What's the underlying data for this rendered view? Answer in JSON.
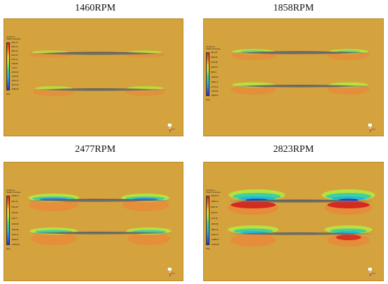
{
  "figure": {
    "panels": [
      {
        "title": "1460RPM",
        "legend_title": "contour-1\nStatic Pressure",
        "legend_ticks": [
          "4643.47",
          "3804.75",
          "3896.19",
          "2827.62",
          "1924.42",
          "1035.89",
          "-102.47",
          "-4000.29",
          "-3106.92",
          "-3879.74",
          "-5672.93",
          "-6586.86"
        ],
        "unit": "[Pa]"
      },
      {
        "title": "1858RPM",
        "legend_title": "contour-1\nStatic Pressure",
        "legend_ticks": [
          "8414.87",
          "6829.86",
          "4523.88",
          "2833.00",
          "898.01",
          "-1083.35",
          "-2890.17",
          "-4775.14",
          "-7009.54",
          "-9058.94"
        ],
        "unit": "[Pa]"
      },
      {
        "title": "2477RPM",
        "legend_title": "contour-1\nStatic Pressure",
        "legend_ticks": [
          "12839.47",
          "9267.16",
          "7094.48",
          "3702.08",
          "1293.77",
          "-1050.38",
          "-3363.59",
          "-6180.73",
          "-8498.07",
          "-12096.40"
        ],
        "unit": "[Pa]"
      },
      {
        "title": "2823RPM",
        "legend_title": "contour-1\nStatic Pressure",
        "legend_ticks": [
          "16564.81",
          "12867.41",
          "8936.13",
          "5118.12",
          "1453.35",
          "-1864.59",
          "-5587.44",
          "-9180.13",
          "-12898.37",
          "-16509.80"
        ],
        "unit": "[Pa]"
      }
    ],
    "colors": {
      "background": "#d4a33d",
      "high_pressure": "#d42a1f",
      "mid_high": "#e88a3a",
      "mid": "#b9e03d",
      "low_mid": "#3fd0a0",
      "low_pressure": "#2a2ed0",
      "blade": "#6a6a6a"
    }
  }
}
